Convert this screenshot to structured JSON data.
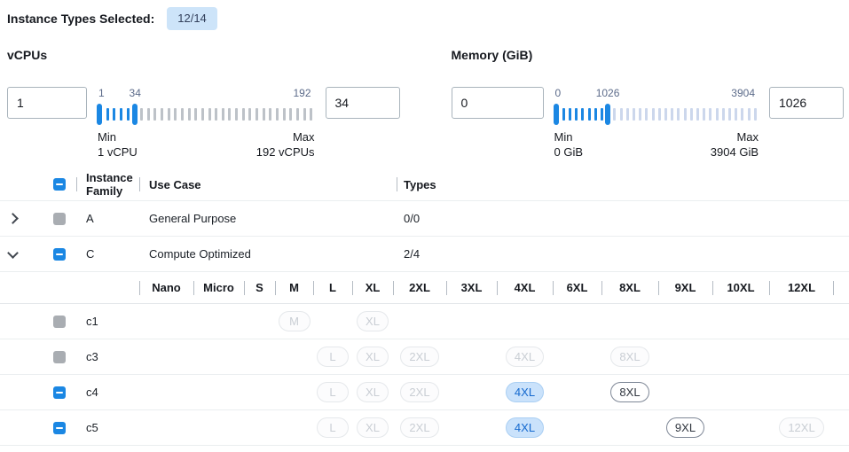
{
  "colors": {
    "accent_blue": "#1b87e3",
    "badge_bg": "#cde4f9",
    "badge_text": "#33415c",
    "selected_pill_bg": "#cae2fb",
    "selected_pill_text": "#1569cf",
    "disabled_text": "#c9ced4",
    "vcpu_inactive_tick": "#bdc2c8",
    "memory_inactive_tick": "#ccd7ec"
  },
  "topbar": {
    "label": "Instance Types Selected:",
    "badge": "12/14"
  },
  "filters": [
    {
      "label": "vCPUs",
      "min_value": "1",
      "max_value": "34",
      "slider": {
        "min": 1,
        "max": 192,
        "low": 1,
        "high": 34,
        "labels": {
          "low": "1",
          "high": "34",
          "max": "192"
        },
        "inactive_tick_color": "#bdc2c8"
      },
      "min_caption_title": "Min",
      "min_caption_value": "1 vCPU",
      "max_caption_title": "Max",
      "max_caption_value": "192 vCPUs"
    },
    {
      "label": "Memory (GiB)",
      "min_value": "0",
      "max_value": "1026",
      "slider": {
        "min": 0,
        "max": 3904,
        "low": 0,
        "high": 1026,
        "labels": {
          "low": "0",
          "high": "1026",
          "max": "3904"
        },
        "inactive_tick_color": "#ccd7ec"
      },
      "min_caption_title": "Min",
      "min_caption_value": "0 GiB",
      "max_caption_title": "Max",
      "max_caption_value": "3904 GiB"
    }
  ],
  "table": {
    "columns": {
      "family": "Instance Family",
      "use_case": "Use Case",
      "types": "Types"
    },
    "select_all_state": "indeterminate",
    "size_columns": [
      "Nano",
      "Micro",
      "S",
      "M",
      "L",
      "XL",
      "2XL",
      "3XL",
      "4XL",
      "6XL",
      "8XL",
      "9XL",
      "10XL",
      "12XL"
    ],
    "families": [
      {
        "name": "A",
        "use_case": "General Purpose",
        "types": "0/0",
        "expanded": false,
        "checkbox": "disabled",
        "instances": []
      },
      {
        "name": "C",
        "use_case": "Compute Optimized",
        "types": "2/4",
        "expanded": true,
        "checkbox": "indeterminate",
        "instances": [
          {
            "name": "c1",
            "checkbox": "disabled",
            "pills": [
              {
                "size": "M",
                "state": "disabled"
              },
              {
                "size": "XL",
                "state": "disabled"
              }
            ]
          },
          {
            "name": "c3",
            "checkbox": "disabled",
            "pills": [
              {
                "size": "L",
                "state": "disabled"
              },
              {
                "size": "XL",
                "state": "disabled"
              },
              {
                "size": "2XL",
                "state": "disabled"
              },
              {
                "size": "4XL",
                "state": "disabled"
              },
              {
                "size": "8XL",
                "state": "disabled"
              }
            ]
          },
          {
            "name": "c4",
            "checkbox": "indeterminate",
            "pills": [
              {
                "size": "L",
                "state": "disabled"
              },
              {
                "size": "XL",
                "state": "disabled"
              },
              {
                "size": "2XL",
                "state": "disabled"
              },
              {
                "size": "4XL",
                "state": "selected"
              },
              {
                "size": "8XL",
                "state": "available"
              }
            ]
          },
          {
            "name": "c5",
            "checkbox": "indeterminate",
            "pills": [
              {
                "size": "L",
                "state": "disabled"
              },
              {
                "size": "XL",
                "state": "disabled"
              },
              {
                "size": "2XL",
                "state": "disabled"
              },
              {
                "size": "4XL",
                "state": "selected"
              },
              {
                "size": "9XL",
                "state": "available"
              },
              {
                "size": "12XL",
                "state": "disabled"
              }
            ]
          }
        ]
      }
    ]
  }
}
